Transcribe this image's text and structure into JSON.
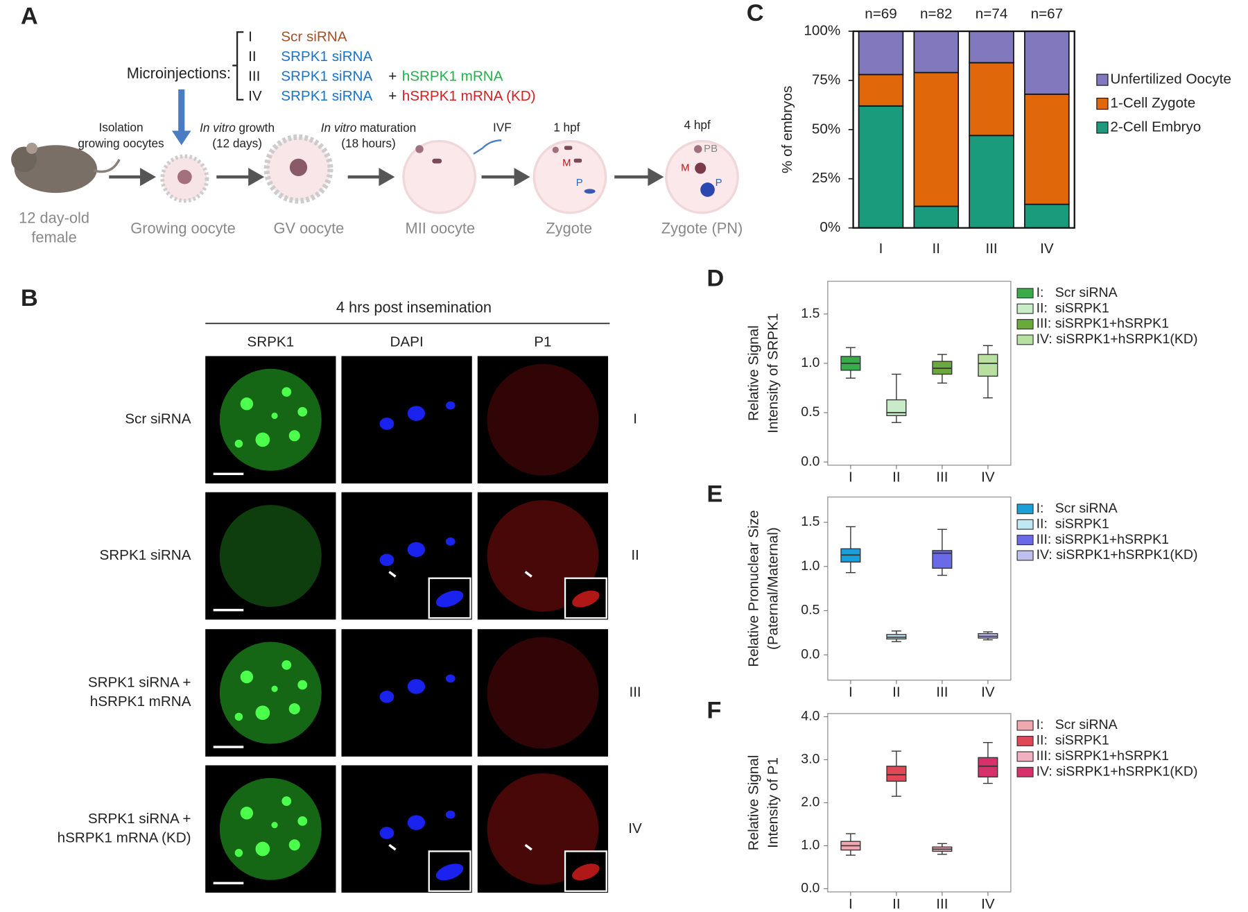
{
  "panel_a": {
    "label": "A",
    "microinjections_label": "Microinjections:",
    "groups": [
      {
        "numeral": "I",
        "sirna": "Scr siRNA"
      },
      {
        "numeral": "II",
        "sirna": "SRPK1 siRNA"
      },
      {
        "numeral": "III",
        "sirna": "SRPK1 siRNA",
        "plus": "+",
        "mrna": "hSRPK1 mRNA"
      },
      {
        "numeral": "IV",
        "sirna": "SRPK1 siRNA",
        "plus": "+",
        "mrna": "hSRPK1 mRNA (KD)"
      }
    ],
    "isolation": [
      "Isolation",
      "growing oocytes"
    ],
    "growth": {
      "italic": "In vitro",
      "text": "growth",
      "line2": "(12 days)"
    },
    "maturation": {
      "italic": "In vitro",
      "text": "maturation",
      "line2": "(18 hours)"
    },
    "ivf": "IVF",
    "time1": "1 hpf",
    "time2": "4 hpf",
    "mouse": [
      "12 day-old",
      "female"
    ],
    "stages": [
      "Growing oocyte",
      "GV oocyte",
      "MII oocyte",
      "Zygote",
      "Zygote (PN)"
    ],
    "marks": {
      "zygote_m": "M",
      "zygote_p": "P",
      "pn_pb": "PB",
      "pn_m": "M",
      "pn_p": "P"
    }
  },
  "panel_b": {
    "label": "B",
    "header": "4 hrs post insemination",
    "columns": [
      "SRPK1",
      "DAPI",
      "P1"
    ],
    "rows": [
      {
        "label": [
          "Scr siRNA"
        ],
        "numeral": "I"
      },
      {
        "label": [
          "SRPK1 siRNA"
        ],
        "numeral": "II"
      },
      {
        "label": [
          "SRPK1 siRNA +",
          "hSRPK1 mRNA"
        ],
        "numeral": "III"
      },
      {
        "label": [
          "SRPK1 siRNA +",
          "hSRPK1 mRNA (KD)"
        ],
        "numeral": "IV"
      }
    ]
  },
  "chart_data": [
    {
      "type": "stacked_bar",
      "panel": "C",
      "ylabel": [
        "% of embryos"
      ],
      "categories": [
        "I",
        "II",
        "III",
        "IV"
      ],
      "annotations": [
        "n=69",
        "n=82",
        "n=74",
        "n=67"
      ],
      "series": [
        {
          "name": "2-Cell Embryo",
          "color": "#1a9c7c",
          "values": [
            62,
            11,
            47,
            12
          ]
        },
        {
          "name": "1-Cell Zygote",
          "color": "#e0680a",
          "values": [
            16,
            68,
            37,
            56
          ]
        },
        {
          "name": "Unfertilized Oocyte",
          "color": "#8278be",
          "values": [
            22,
            21,
            16,
            32
          ]
        }
      ],
      "ylim": [
        0,
        100
      ],
      "yticks": [
        {
          "value": 0,
          "label": "0%"
        },
        {
          "value": 25,
          "label": "25%"
        },
        {
          "value": 50,
          "label": "50%"
        },
        {
          "value": 75,
          "label": "75%"
        },
        {
          "value": 100,
          "label": "100%"
        }
      ]
    },
    {
      "type": "box",
      "panel": "D",
      "ylabel": [
        "Relative Signal",
        "Intensity of SRPK1"
      ],
      "categories": [
        "I",
        "II",
        "III",
        "IV"
      ],
      "series": [
        {
          "name": "I:   Scr siRNA",
          "color": "#3aaa4a",
          "whislo": 0.85,
          "q1": 0.93,
          "med": 1.0,
          "q3": 1.07,
          "whishi": 1.16
        },
        {
          "name": "II:  siSRPK1",
          "color": "#c8ecc8",
          "whislo": 0.4,
          "q1": 0.47,
          "med": 0.5,
          "q3": 0.63,
          "whishi": 0.89
        },
        {
          "name": "III: siSRPK1+hSRPK1",
          "color": "#6aaa3a",
          "whislo": 0.8,
          "q1": 0.89,
          "med": 0.95,
          "q3": 1.02,
          "whishi": 1.09
        },
        {
          "name": "IV: siSRPK1+hSRPK1(KD)",
          "color": "#b8e0a0",
          "whislo": 0.65,
          "q1": 0.87,
          "med": 1.0,
          "q3": 1.09,
          "whishi": 1.18
        }
      ],
      "ylim": [
        0,
        1.8
      ],
      "yticks": [
        {
          "value": 0,
          "label": "0.0"
        },
        0.5,
        {
          "value": 1,
          "label": "1.0"
        },
        1.5
      ]
    },
    {
      "type": "box",
      "panel": "E",
      "ylabel": [
        "Relative Pronuclear Size",
        "(Paternal/Maternal)"
      ],
      "categories": [
        "I",
        "II",
        "III",
        "IV"
      ],
      "series": [
        {
          "name": "I:   Scr siRNA",
          "color": "#1a9fd8",
          "whislo": 0.93,
          "q1": 1.05,
          "med": 1.13,
          "q3": 1.2,
          "whishi": 1.45
        },
        {
          "name": "II:  siSRPK1",
          "color": "#c0e8f0",
          "whislo": 0.15,
          "q1": 0.18,
          "med": 0.2,
          "q3": 0.23,
          "whishi": 0.27
        },
        {
          "name": "III: siSRPK1+hSRPK1",
          "color": "#6a6ae8",
          "whislo": 0.9,
          "q1": 0.98,
          "med": 1.15,
          "q3": 1.18,
          "whishi": 1.42
        },
        {
          "name": "IV: siSRPK1+hSRPK1(KD)",
          "color": "#c0c0f0",
          "whislo": 0.17,
          "q1": 0.19,
          "med": 0.21,
          "q3": 0.24,
          "whishi": 0.26
        }
      ],
      "ylim": [
        -0.25,
        1.75
      ],
      "yticks": [
        {
          "value": 0,
          "label": "0.0"
        },
        0.5,
        {
          "value": 1,
          "label": "1.0"
        },
        1.5
      ]
    },
    {
      "type": "box",
      "panel": "F",
      "ylabel": [
        "Relative Signal",
        "Intensity of P1"
      ],
      "categories": [
        "I",
        "II",
        "III",
        "IV"
      ],
      "series": [
        {
          "name": "I:   Scr siRNA",
          "color": "#f0a8b0",
          "whislo": 0.78,
          "q1": 0.9,
          "med": 1.0,
          "q3": 1.1,
          "whishi": 1.28
        },
        {
          "name": "II:  siSRPK1",
          "color": "#e04858",
          "whislo": 2.15,
          "q1": 2.5,
          "med": 2.65,
          "q3": 2.85,
          "whishi": 3.2
        },
        {
          "name": "III: siSRPK1+hSRPK1",
          "color": "#f0b0c0",
          "whislo": 0.8,
          "q1": 0.87,
          "med": 0.92,
          "q3": 0.97,
          "whishi": 1.05
        },
        {
          "name": "IV: siSRPK1+hSRPK1(KD)",
          "color": "#d8306a",
          "whislo": 2.45,
          "q1": 2.6,
          "med": 2.85,
          "q3": 3.05,
          "whishi": 3.4
        }
      ],
      "ylim": [
        0,
        4
      ],
      "yticks": [
        {
          "value": 0,
          "label": "0.0"
        },
        {
          "value": 1,
          "label": "1.0"
        },
        {
          "value": 2,
          "label": "2.0"
        },
        {
          "value": 3,
          "label": "3.0"
        },
        {
          "value": 4,
          "label": "4.0"
        }
      ]
    }
  ]
}
